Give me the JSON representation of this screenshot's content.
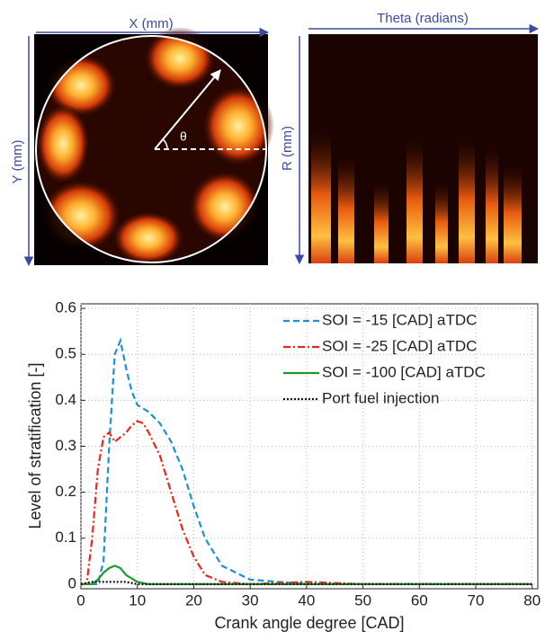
{
  "figure_labels": {
    "x_image": "X (mm)",
    "y_image": "Y (mm)",
    "theta": "θ",
    "theta_image": "Theta (radians)",
    "r_image": "R (mm)"
  },
  "chart_data": {
    "type": "line",
    "xlabel": "Crank angle degree [CAD]",
    "ylabel": "Level of stratification [-]",
    "xlim": [
      0,
      81
    ],
    "ylim": [
      -0.01,
      0.61
    ],
    "xticks": [
      0,
      10,
      20,
      30,
      40,
      50,
      60,
      70,
      80
    ],
    "yticks": [
      0,
      0.1,
      0.2,
      0.3,
      0.4,
      0.5,
      0.6
    ],
    "grid": true,
    "legend": "upper right",
    "series": [
      {
        "name": "SOI = -15 [CAD] aTDC",
        "color": "#1f8fd0",
        "linestyle": "dashed",
        "x": [
          0,
          2,
          3,
          4,
          5,
          6,
          7,
          8,
          9,
          10,
          12,
          14,
          16,
          18,
          20,
          22,
          25,
          30,
          35,
          40,
          50,
          60,
          70,
          80
        ],
        "values": [
          0,
          0,
          0,
          0.05,
          0.3,
          0.5,
          0.53,
          0.47,
          0.42,
          0.39,
          0.375,
          0.35,
          0.31,
          0.25,
          0.17,
          0.1,
          0.04,
          0.01,
          0.005,
          0,
          0,
          0,
          0,
          0
        ]
      },
      {
        "name": "SOI = -25 [CAD] aTDC",
        "color": "#e8281e",
        "linestyle": "dashdot",
        "x": [
          0,
          1,
          2,
          3,
          4,
          5,
          6,
          7,
          8,
          9,
          10,
          11,
          12,
          14,
          16,
          18,
          20,
          22,
          25,
          30,
          40,
          50,
          60,
          80
        ],
        "values": [
          0,
          0,
          0.1,
          0.25,
          0.32,
          0.33,
          0.31,
          0.32,
          0.33,
          0.345,
          0.355,
          0.35,
          0.33,
          0.28,
          0.2,
          0.12,
          0.06,
          0.02,
          0.005,
          0,
          0.005,
          0,
          0,
          0
        ]
      },
      {
        "name": "SOI = -100 [CAD] aTDC",
        "color": "#1e9a2a",
        "linestyle": "solid",
        "x": [
          0,
          2,
          3,
          4,
          5,
          6,
          7,
          8,
          10,
          12,
          80
        ],
        "values": [
          0,
          0,
          0.01,
          0.025,
          0.035,
          0.04,
          0.035,
          0.02,
          0.005,
          0,
          0
        ]
      },
      {
        "name": "Port fuel injection",
        "color": "#111111",
        "linestyle": "dotted",
        "x": [
          0,
          2,
          4,
          6,
          8,
          10,
          80
        ],
        "values": [
          0,
          0.005,
          0.005,
          0.005,
          0.005,
          0,
          0
        ]
      }
    ]
  }
}
